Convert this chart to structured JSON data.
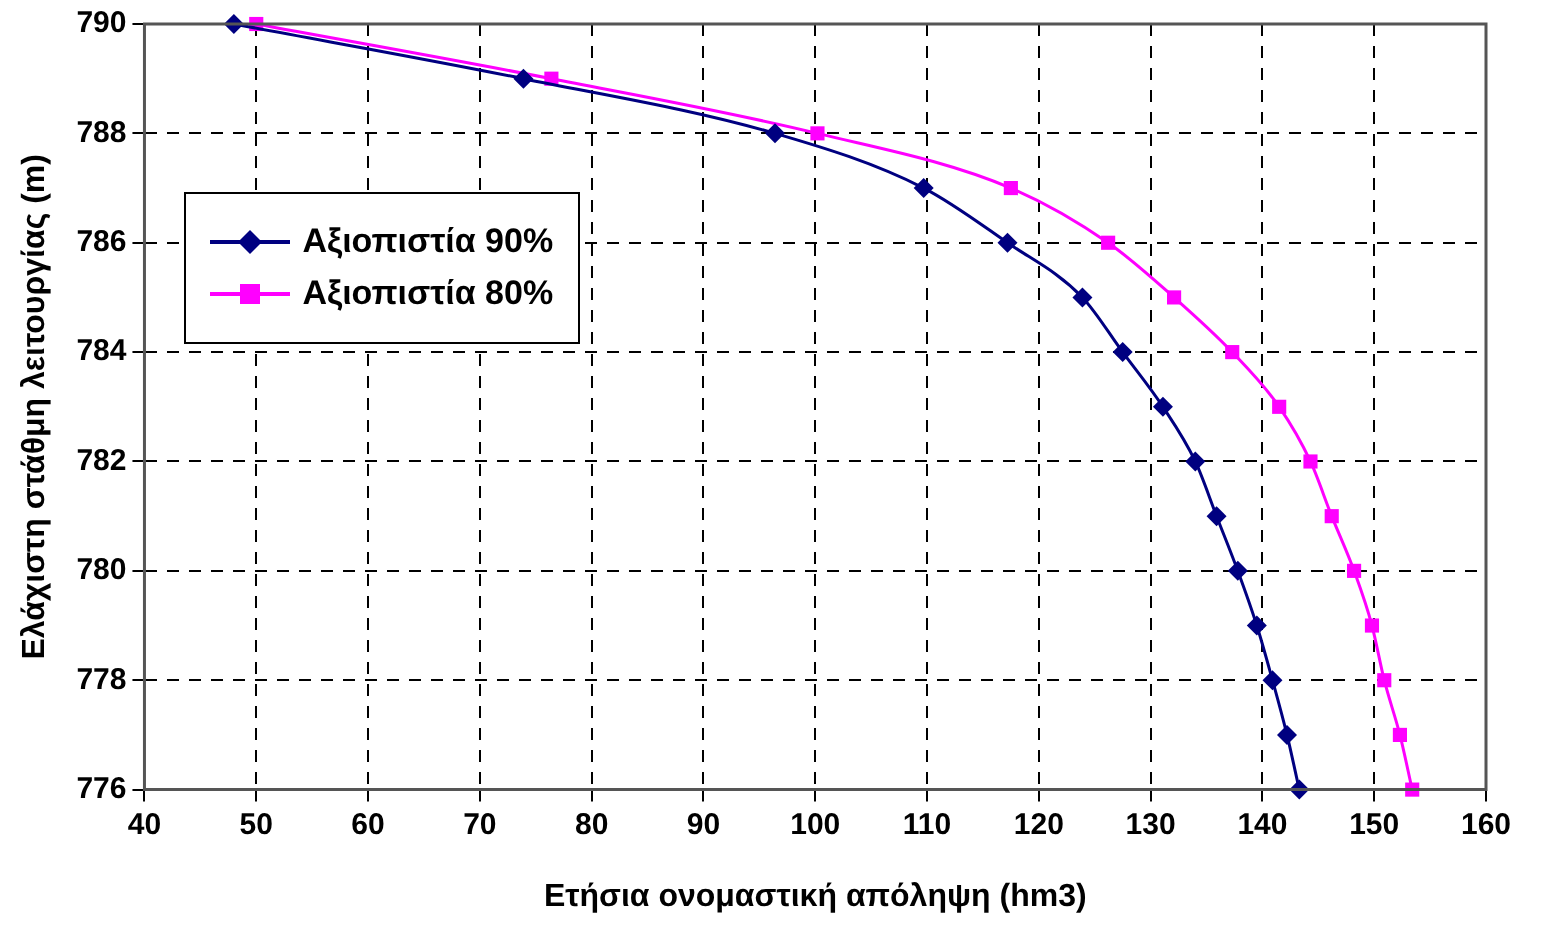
{
  "chart_data": {
    "type": "line",
    "xlabel": "Ετήσια ονομαστική απόληψη (hm3)",
    "ylabel": "Ελάχιστη στάθμη λειτουργίας (m)",
    "xlim": [
      40,
      160
    ],
    "xticks": [
      40,
      50,
      60,
      70,
      80,
      90,
      100,
      110,
      120,
      130,
      140,
      150,
      160
    ],
    "ylim": [
      776,
      790
    ],
    "yticks": [
      776,
      778,
      780,
      782,
      784,
      786,
      788,
      790
    ],
    "grid": true,
    "legend": "top left",
    "line_style": "solid",
    "series": [
      {
        "name": "Αξιοπιστία 90%",
        "color": "#000080",
        "marker": "diamond",
        "x": [
          48.0,
          73.9,
          96.4,
          109.7,
          117.2,
          123.9,
          127.5,
          131.1,
          134.0,
          135.9,
          137.8,
          139.5,
          140.9,
          142.2,
          143.3
        ],
        "values": [
          790,
          789,
          788,
          787,
          786,
          785,
          784,
          783,
          782,
          781,
          780,
          779,
          778,
          777,
          776
        ]
      },
      {
        "name": "Αξιοπιστία 80%",
        "color": "#ff00ff",
        "marker": "square",
        "x": [
          50.0,
          76.4,
          100.2,
          117.5,
          126.2,
          132.1,
          137.3,
          141.5,
          144.3,
          146.2,
          148.2,
          149.8,
          150.9,
          152.3,
          153.4
        ],
        "values": [
          790,
          789,
          788,
          787,
          786,
          785,
          784,
          783,
          782,
          781,
          780,
          779,
          778,
          777,
          776
        ]
      }
    ]
  }
}
